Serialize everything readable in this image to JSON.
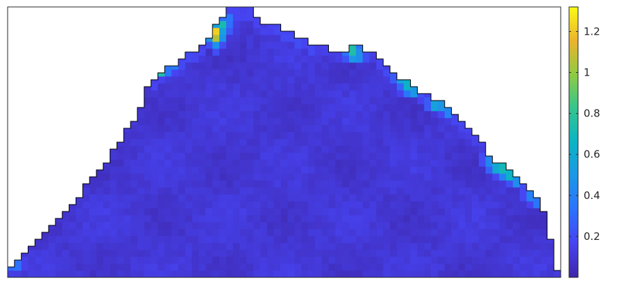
{
  "chart_data": {
    "type": "heatmap",
    "title": "",
    "xlabel": "",
    "ylabel": "",
    "grid": false,
    "colormap": "parula",
    "color_range": [
      0,
      1.32
    ],
    "grid_size": {
      "columns": 81,
      "rows": 39
    },
    "region_outline": [
      [
        0,
        1
      ],
      [
        0,
        1.5
      ],
      [
        1,
        1.5
      ],
      [
        1,
        2.5
      ],
      [
        2,
        2.5
      ],
      [
        2,
        3.5
      ],
      [
        3,
        3.5
      ],
      [
        3,
        4.5
      ],
      [
        4,
        4.5
      ],
      [
        4,
        5.5
      ],
      [
        5,
        5.5
      ],
      [
        5,
        6.5
      ],
      [
        6,
        6.5
      ],
      [
        6,
        7.5
      ],
      [
        7,
        7.5
      ],
      [
        7,
        8.5
      ],
      [
        8,
        8.5
      ],
      [
        8,
        9.5
      ],
      [
        9,
        9.5
      ],
      [
        9,
        10.5
      ],
      [
        10,
        10.5
      ],
      [
        10,
        11.5
      ],
      [
        11,
        11.5
      ],
      [
        11,
        13.5
      ],
      [
        12,
        13.5
      ],
      [
        12,
        14.5
      ],
      [
        13,
        14.5
      ],
      [
        13,
        15.5
      ],
      [
        14,
        15.5
      ],
      [
        14,
        16.5
      ],
      [
        15,
        16.5
      ],
      [
        15,
        18.5
      ],
      [
        16,
        18.5
      ],
      [
        16,
        19.5
      ],
      [
        17,
        19.5
      ],
      [
        17,
        21.5
      ],
      [
        18,
        21.5
      ],
      [
        18,
        22.5
      ],
      [
        19,
        22.5
      ],
      [
        19,
        24.5
      ],
      [
        20,
        24.5
      ],
      [
        20,
        27.5
      ],
      [
        21,
        27.5
      ],
      [
        21,
        28.5
      ],
      [
        22,
        28.5
      ],
      [
        22,
        29.5
      ],
      [
        23,
        29.5
      ],
      [
        23,
        30.5
      ],
      [
        25,
        30.5
      ],
      [
        25,
        31.5
      ],
      [
        26,
        31.5
      ],
      [
        26,
        32.5
      ],
      [
        28,
        32.5
      ],
      [
        28,
        33.5
      ],
      [
        29,
        33.5
      ],
      [
        29,
        34.5
      ],
      [
        30,
        34.5
      ],
      [
        30,
        36.5
      ],
      [
        31,
        36.5
      ],
      [
        31,
        37.5
      ],
      [
        32,
        37.5
      ],
      [
        32,
        39
      ],
      [
        36,
        39
      ],
      [
        36,
        37.5
      ],
      [
        37,
        37.5
      ],
      [
        37,
        36.5
      ],
      [
        40,
        36.5
      ],
      [
        40,
        35.5
      ],
      [
        42,
        35.5
      ],
      [
        42,
        34.5
      ],
      [
        44,
        34.5
      ],
      [
        44,
        33.5
      ],
      [
        47,
        33.5
      ],
      [
        47,
        32.5
      ],
      [
        50,
        32.5
      ],
      [
        50,
        33.5
      ],
      [
        52,
        33.5
      ],
      [
        52,
        32.5
      ],
      [
        54,
        32.5
      ],
      [
        54,
        31.5
      ],
      [
        55,
        31.5
      ],
      [
        55,
        30.5
      ],
      [
        56,
        30.5
      ],
      [
        56,
        29.5
      ],
      [
        57,
        29.5
      ],
      [
        57,
        28.5
      ],
      [
        59,
        28.5
      ],
      [
        59,
        27.5
      ],
      [
        60,
        27.5
      ],
      [
        60,
        26.5
      ],
      [
        62,
        26.5
      ],
      [
        62,
        25.5
      ],
      [
        64,
        25.5
      ],
      [
        64,
        24.5
      ],
      [
        65,
        24.5
      ],
      [
        65,
        23.5
      ],
      [
        66,
        23.5
      ],
      [
        66,
        22.5
      ],
      [
        67,
        22.5
      ],
      [
        67,
        21.5
      ],
      [
        68,
        21.5
      ],
      [
        68,
        20.5
      ],
      [
        69,
        20.5
      ],
      [
        69,
        19.5
      ],
      [
        70,
        19.5
      ],
      [
        70,
        17.5
      ],
      [
        71,
        17.5
      ],
      [
        71,
        16.5
      ],
      [
        73,
        16.5
      ],
      [
        73,
        15.5
      ],
      [
        74,
        15.5
      ],
      [
        74,
        14.5
      ],
      [
        75,
        14.5
      ],
      [
        75,
        13.5
      ],
      [
        76,
        13.5
      ],
      [
        76,
        12.5
      ],
      [
        77,
        12.5
      ],
      [
        77,
        11.5
      ],
      [
        78,
        11.5
      ],
      [
        78,
        9.5
      ],
      [
        79,
        9.5
      ],
      [
        79,
        5.5
      ],
      [
        80,
        5.5
      ],
      [
        80,
        1
      ],
      [
        81,
        1
      ]
    ],
    "hotspots": [
      {
        "x": 30.5,
        "y": 35.7,
        "value": 1.22
      },
      {
        "x": 30.5,
        "y": 34.7,
        "value": 1.05
      },
      {
        "x": 31.5,
        "y": 36.7,
        "value": 0.72
      },
      {
        "x": 31.5,
        "y": 35.7,
        "value": 0.55
      },
      {
        "x": 30.5,
        "y": 33.7,
        "value": 0.45
      },
      {
        "x": 29.5,
        "y": 34.7,
        "value": 0.4
      },
      {
        "x": 32.5,
        "y": 37.7,
        "value": 0.35
      },
      {
        "x": 22.5,
        "y": 30.0,
        "value": 0.75
      },
      {
        "x": 24.5,
        "y": 31.0,
        "value": 0.38
      },
      {
        "x": 50.5,
        "y": 33.0,
        "value": 0.75
      },
      {
        "x": 50.5,
        "y": 32.0,
        "value": 0.5
      },
      {
        "x": 51.5,
        "y": 32.0,
        "value": 0.45
      },
      {
        "x": 57.5,
        "y": 29.0,
        "value": 0.55
      },
      {
        "x": 58.5,
        "y": 28.0,
        "value": 0.65
      },
      {
        "x": 59.5,
        "y": 27.0,
        "value": 0.5
      },
      {
        "x": 58.5,
        "y": 27.0,
        "value": 0.35
      },
      {
        "x": 62.5,
        "y": 25.0,
        "value": 0.55
      },
      {
        "x": 63.5,
        "y": 25.0,
        "value": 0.48
      },
      {
        "x": 64.5,
        "y": 24.0,
        "value": 0.4
      },
      {
        "x": 70.5,
        "y": 17.0,
        "value": 0.42
      },
      {
        "x": 71.5,
        "y": 16.0,
        "value": 0.6
      },
      {
        "x": 72.5,
        "y": 16.0,
        "value": 0.7
      },
      {
        "x": 73.5,
        "y": 15.0,
        "value": 0.65
      },
      {
        "x": 74.5,
        "y": 14.0,
        "value": 0.45
      },
      {
        "x": 72.5,
        "y": 15.0,
        "value": 0.4
      },
      {
        "x": 76.5,
        "y": 12.0,
        "value": 0.4
      },
      {
        "x": 77.5,
        "y": 11.0,
        "value": 0.35
      },
      {
        "x": 1.5,
        "y": 2.0,
        "value": 0.33
      },
      {
        "x": 0.5,
        "y": 1.3,
        "value": 0.3
      }
    ],
    "base_value": 0.1,
    "colorbar": {
      "ticks": [
        0.2,
        0.4,
        0.6,
        0.8,
        1,
        1.2
      ],
      "tick_labels": [
        "0.2",
        "0.4",
        "0.6",
        "0.8",
        "1",
        "1.2"
      ],
      "range": [
        0,
        1.32
      ],
      "location": "right"
    }
  }
}
